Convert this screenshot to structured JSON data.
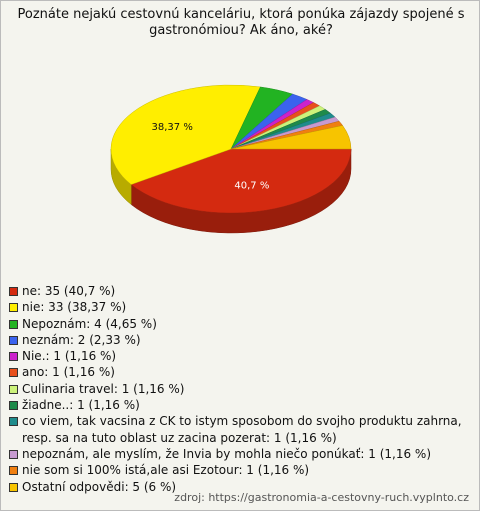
{
  "chart_data": {
    "type": "pie",
    "title": "Poznáte nejakú cestovnú kanceláriu, ktorá ponúka zájazdy spojené s gastronómiou? Ak áno, aké?",
    "categories": [
      "ne: 35 (40,7 %)",
      "nie: 33 (38,37 %)",
      "Nepoznám: 4 (4,65 %)",
      "neznám: 2 (2,33 %)",
      "Nie.: 1 (1,16 %)",
      "ano: 1 (1,16 %)",
      "Culinaria travel: 1 (1,16 %)",
      "žiadne..: 1 (1,16 %)",
      "co viem, tak vacsina z CK to istym sposobom do svojho produktu zahrna, resp. sa na tuto oblast uz zacina pozerat: 1 (1,16 %)",
      "nepoznám, ale myslím, že Invia by mohla niečo ponúkať: 1 (1,16 %)",
      "nie som si 100% istá,ale asi Ezotour: 1 (1,16 %)",
      "Ostatní odpovědi: 5 (6 %)"
    ],
    "values": [
      40.7,
      38.37,
      4.65,
      2.33,
      1.16,
      1.16,
      1.16,
      1.16,
      1.16,
      1.16,
      1.16,
      6
    ],
    "value_labels": [
      "40,7 %",
      "38,37 %",
      null,
      null,
      null,
      null,
      null,
      null,
      null,
      null,
      null,
      null
    ],
    "colors": [
      "#d42a10",
      "#ffee00",
      "#22b322",
      "#3b63ee",
      "#cc22cc",
      "#e8501c",
      "#ccf27a",
      "#1e8a4a",
      "#1f8c8c",
      "#c79ad0",
      "#f07f10",
      "#f7c400"
    ],
    "source": "zdroj: https://gastronomia-a-cestovny-ruch.vyplnto.cz"
  }
}
